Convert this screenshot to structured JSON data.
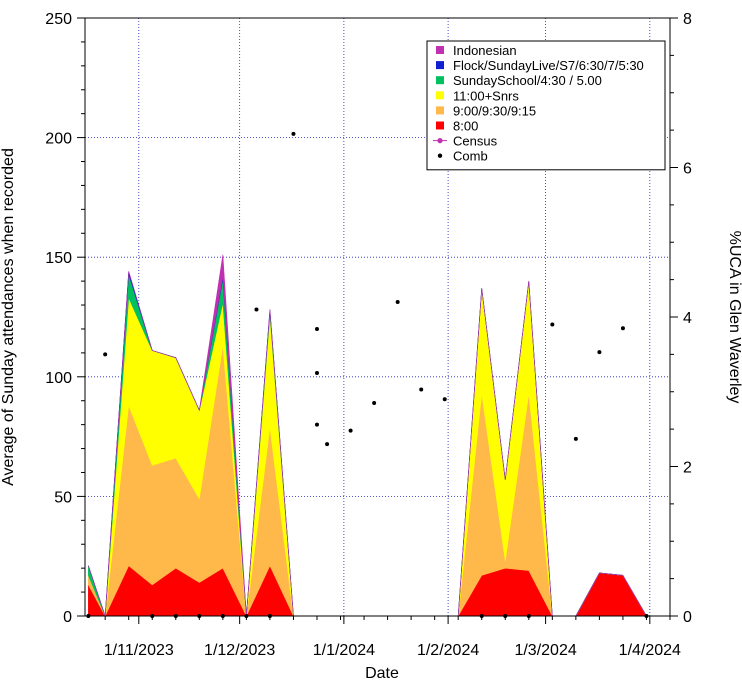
{
  "chart_data": {
    "type": "area",
    "title": "",
    "xlabel": "Date",
    "ylabel": "Average of Sunday attendances when recorded",
    "y2label": "%UCA in Glen Waverley",
    "ylim": [
      0,
      250
    ],
    "y2lim": [
      0,
      8
    ],
    "yticks": [
      0,
      50,
      100,
      150,
      200,
      250
    ],
    "y2ticks": [
      0,
      2,
      4,
      6,
      8
    ],
    "xticks": [
      "1/11/2023",
      "1/12/2023",
      "1/1/2024",
      "1/2/2024",
      "1/3/2024",
      "1/4/2024"
    ],
    "x_start": "2023-10-16",
    "x_end": "2024-04-07",
    "grid": true,
    "legend_position": "top-right",
    "x": [
      "2023-10-17",
      "2023-10-22",
      "2023-10-29",
      "2023-11-05",
      "2023-11-12",
      "2023-11-19",
      "2023-11-26",
      "2023-12-03",
      "2023-12-10",
      "2023-12-17",
      "2023-12-24",
      "2023-12-31",
      "2024-01-07",
      "2024-01-14",
      "2024-01-21",
      "2024-01-28",
      "2024-02-04",
      "2024-02-11",
      "2024-02-18",
      "2024-02-25",
      "2024-03-03",
      "2024-03-10",
      "2024-03-17",
      "2024-03-24",
      "2024-03-31",
      "2024-04-07"
    ],
    "series": [
      {
        "name": "8:00",
        "color": "#ff0000",
        "values": [
          13,
          0,
          21,
          13,
          20,
          14,
          20,
          0,
          21,
          0,
          0,
          0,
          0,
          0,
          0,
          0,
          0,
          17,
          20,
          19,
          0,
          0,
          18,
          17,
          0,
          0
        ]
      },
      {
        "name": "9:00/9:30/9:15",
        "color": "#ffb84a",
        "values": [
          4,
          0,
          67,
          50,
          46,
          35,
          93,
          0,
          58,
          0,
          0,
          0,
          0,
          0,
          0,
          0,
          0,
          76,
          3,
          74,
          0,
          0,
          0,
          0,
          0,
          0
        ]
      },
      {
        "name": "11:00+Snrs",
        "color": "#ffff00",
        "values": [
          0,
          0,
          45,
          48,
          42,
          37,
          18,
          0,
          47,
          0,
          0,
          0,
          0,
          0,
          0,
          0,
          0,
          44,
          34,
          47,
          0,
          0,
          0,
          0,
          0,
          0
        ]
      },
      {
        "name": "SundaySchool/4:30 / 5.00",
        "color": "#00c060",
        "values": [
          4,
          0,
          10,
          0,
          0,
          0,
          10,
          0,
          2,
          0,
          0,
          0,
          0,
          0,
          0,
          0,
          0,
          0,
          0,
          0,
          0,
          0,
          0,
          0,
          0,
          0
        ]
      },
      {
        "name": "Flock/SundayLive/S7/6:30/7/5:30",
        "color": "#1020d0",
        "values": [
          0,
          0,
          1,
          0,
          0,
          0,
          1,
          0,
          0,
          0,
          0,
          0,
          0,
          0,
          0,
          0,
          0,
          0,
          0,
          0,
          0,
          0,
          0,
          0,
          0,
          0
        ]
      },
      {
        "name": "Indonesian",
        "color": "#c030b0",
        "values": [
          0,
          0,
          0,
          0,
          0,
          0,
          9,
          0,
          0,
          0,
          0,
          0,
          0,
          0,
          0,
          0,
          0,
          0,
          0,
          0,
          0,
          0,
          0,
          0,
          0,
          0
        ]
      }
    ],
    "census": {
      "name": "Census",
      "color": "#c030b0",
      "values": []
    },
    "comb": {
      "name": "Comb",
      "color": "#000000",
      "axis": "y2",
      "points": [
        [
          "2023-10-17",
          0.0
        ],
        [
          "2023-10-22",
          3.5
        ],
        [
          "2023-11-05",
          0.0
        ],
        [
          "2023-11-12",
          0.0
        ],
        [
          "2023-11-19",
          0.0
        ],
        [
          "2023-11-26",
          0.0
        ],
        [
          "2023-12-03",
          0.0
        ],
        [
          "2023-12-06",
          4.1
        ],
        [
          "2023-12-10",
          0.0
        ],
        [
          "2023-12-17",
          6.45
        ],
        [
          "2023-12-24",
          3.84
        ],
        [
          "2023-12-24",
          3.25
        ],
        [
          "2023-12-24",
          2.56
        ],
        [
          "2023-12-27",
          2.3
        ],
        [
          "2024-01-03",
          2.48
        ],
        [
          "2024-01-10",
          2.85
        ],
        [
          "2024-01-17",
          4.2
        ],
        [
          "2024-01-24",
          3.03
        ],
        [
          "2024-01-31",
          2.9
        ],
        [
          "2024-02-11",
          0.0
        ],
        [
          "2024-02-18",
          0.0
        ],
        [
          "2024-02-25",
          0.0
        ],
        [
          "2024-03-03",
          3.9
        ],
        [
          "2024-03-10",
          2.37
        ],
        [
          "2024-03-17",
          3.53
        ],
        [
          "2024-03-24",
          3.85
        ],
        [
          "2024-03-31",
          0.0
        ]
      ]
    }
  }
}
